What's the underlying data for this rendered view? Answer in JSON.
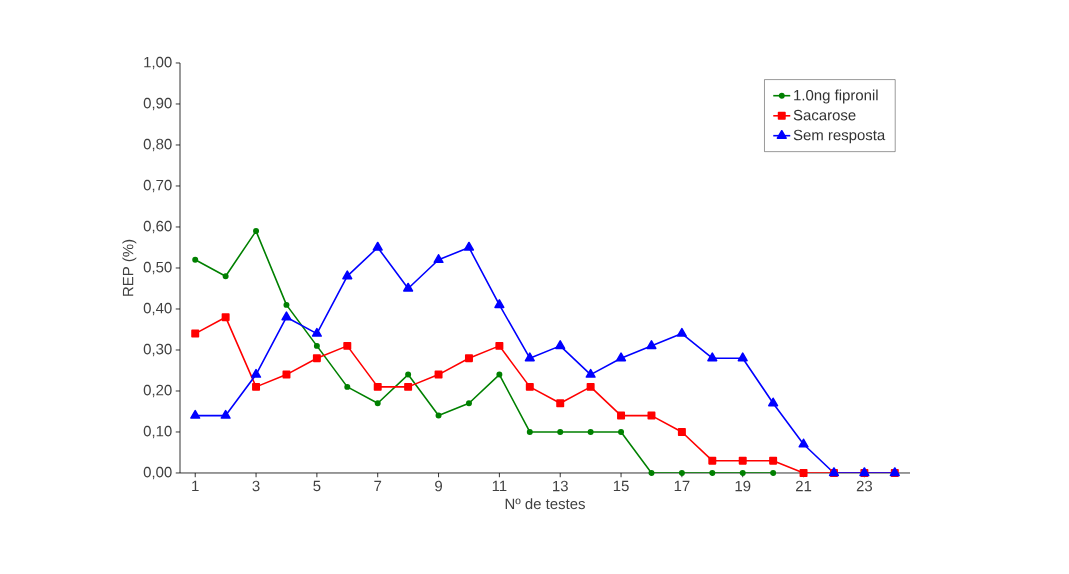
{
  "chart_data": {
    "type": "line",
    "xlabel": "Nº de testes",
    "ylabel": "REP (%)",
    "x": [
      1,
      2,
      3,
      4,
      5,
      6,
      7,
      8,
      9,
      10,
      11,
      12,
      13,
      14,
      15,
      16,
      17,
      18,
      19,
      20,
      21,
      22,
      23,
      24
    ],
    "xlim": [
      0.5,
      24.5
    ],
    "xticks": [
      1,
      3,
      5,
      7,
      9,
      11,
      13,
      15,
      17,
      19,
      21,
      23
    ],
    "ylim": [
      0,
      1
    ],
    "yticks": [
      {
        "value": 0,
        "label": "0,00"
      },
      {
        "value": 0.1,
        "label": "0,10"
      },
      {
        "value": 0.2,
        "label": "0,20"
      },
      {
        "value": 0.3,
        "label": "0,30"
      },
      {
        "value": 0.4,
        "label": "0,40"
      },
      {
        "value": 0.5,
        "label": "0,50"
      },
      {
        "value": 0.6,
        "label": "0,60"
      },
      {
        "value": 0.7,
        "label": "0,70"
      },
      {
        "value": 0.8,
        "label": "0,80"
      },
      {
        "value": 0.9,
        "label": "0,90"
      },
      {
        "value": 1,
        "label": "1,00"
      }
    ],
    "grid": false,
    "legend": "top right",
    "series": [
      {
        "name": "1.0ng fipronil",
        "color": "#008000",
        "marker": "circle",
        "values": [
          0.52,
          0.48,
          0.59,
          0.41,
          0.31,
          0.21,
          0.17,
          0.24,
          0.14,
          0.17,
          0.24,
          0.1,
          0.1,
          0.1,
          0.1,
          0,
          0,
          0,
          0,
          0,
          null,
          null,
          null,
          null
        ]
      },
      {
        "name": "Sacarose",
        "color": "#ff0000",
        "marker": "square",
        "values": [
          0.34,
          0.38,
          0.21,
          0.24,
          0.28,
          0.31,
          0.21,
          0.21,
          0.24,
          0.28,
          0.31,
          0.21,
          0.17,
          0.21,
          0.14,
          0.14,
          0.1,
          0.03,
          0.03,
          0.03,
          0,
          0,
          0,
          0
        ]
      },
      {
        "name": "Sem resposta",
        "color": "#0000ff",
        "marker": "triangle",
        "values": [
          0.14,
          0.14,
          0.24,
          0.38,
          0.34,
          0.48,
          0.55,
          0.45,
          0.52,
          0.55,
          0.41,
          0.28,
          0.31,
          0.24,
          0.28,
          0.31,
          0.34,
          0.28,
          0.28,
          0.17,
          0.07,
          0,
          0,
          0
        ]
      }
    ]
  }
}
